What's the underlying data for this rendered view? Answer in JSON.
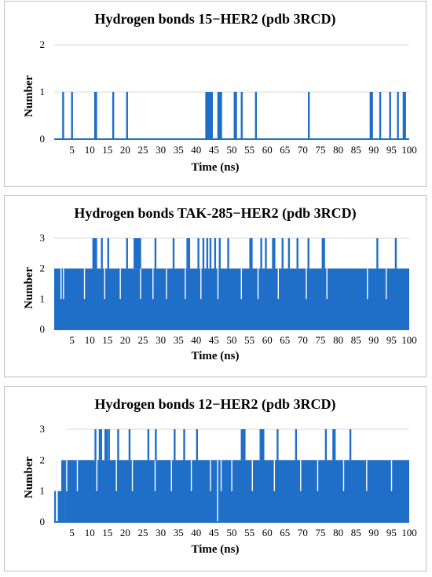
{
  "chart_data": [
    {
      "type": "bar",
      "title": "Hydrogen bonds 15−HER2 (pdb 3RCD)",
      "xlabel": "Time (ns)",
      "ylabel": "Number",
      "xlim": [
        0,
        100
      ],
      "ylim": [
        0,
        2
      ],
      "x_ticks": [
        5,
        10,
        15,
        20,
        25,
        30,
        35,
        40,
        45,
        50,
        55,
        60,
        65,
        70,
        75,
        80,
        85,
        90,
        95,
        100
      ],
      "y_ticks": [
        0,
        1,
        2
      ],
      "grid": true,
      "color": "#1f6fc8",
      "baseline": 0,
      "events": [
        {
          "t": 2.5,
          "v": 1
        },
        {
          "t": 5.0,
          "v": 1
        },
        {
          "t": 11.5,
          "v": 1
        },
        {
          "t": 11.8,
          "v": 1
        },
        {
          "t": 16.6,
          "v": 1
        },
        {
          "t": 20.5,
          "v": 1
        },
        {
          "t": 42.8,
          "v": 1
        },
        {
          "t": 43.2,
          "v": 1
        },
        {
          "t": 43.6,
          "v": 1
        },
        {
          "t": 44.0,
          "v": 1
        },
        {
          "t": 44.4,
          "v": 1
        },
        {
          "t": 46.2,
          "v": 1
        },
        {
          "t": 46.6,
          "v": 1
        },
        {
          "t": 47.0,
          "v": 1
        },
        {
          "t": 50.8,
          "v": 1
        },
        {
          "t": 51.2,
          "v": 1
        },
        {
          "t": 52.8,
          "v": 1
        },
        {
          "t": 56.8,
          "v": 1
        },
        {
          "t": 71.7,
          "v": 1
        },
        {
          "t": 89.1,
          "v": 1
        },
        {
          "t": 89.5,
          "v": 1
        },
        {
          "t": 91.8,
          "v": 1
        },
        {
          "t": 94.6,
          "v": 1
        },
        {
          "t": 96.8,
          "v": 1
        },
        {
          "t": 98.4,
          "v": 1
        },
        {
          "t": 98.8,
          "v": 1
        }
      ]
    },
    {
      "type": "bar",
      "title": "Hydrogen bonds TAK-285−HER2 (pdb 3RCD)",
      "xlabel": "Time (ns)",
      "ylabel": "Number",
      "xlim": [
        0,
        100
      ],
      "ylim": [
        0,
        3
      ],
      "x_ticks": [
        5,
        10,
        15,
        20,
        25,
        30,
        35,
        40,
        45,
        50,
        55,
        60,
        65,
        70,
        75,
        80,
        85,
        90,
        95,
        100
      ],
      "y_ticks": [
        0,
        1,
        2,
        3
      ],
      "grid": true,
      "color": "#1f6fc8",
      "baseline": 2,
      "low_events": [
        {
          "t": 1.9,
          "v": 1
        },
        {
          "t": 2.6,
          "v": 1
        },
        {
          "t": 8.5,
          "v": 1
        },
        {
          "t": 14.2,
          "v": 1
        },
        {
          "t": 18.6,
          "v": 1
        },
        {
          "t": 24.3,
          "v": 1
        },
        {
          "t": 27.8,
          "v": 1
        },
        {
          "t": 31.6,
          "v": 1
        },
        {
          "t": 36.9,
          "v": 1
        },
        {
          "t": 41.3,
          "v": 1
        },
        {
          "t": 46.1,
          "v": 1
        },
        {
          "t": 52.7,
          "v": 1
        },
        {
          "t": 57.4,
          "v": 1
        },
        {
          "t": 63.1,
          "v": 1
        },
        {
          "t": 71.0,
          "v": 1
        },
        {
          "t": 76.8,
          "v": 1
        },
        {
          "t": 88.2,
          "v": 1
        },
        {
          "t": 93.5,
          "v": 1
        }
      ],
      "events": [
        {
          "t": 11.0,
          "v": 3
        },
        {
          "t": 11.4,
          "v": 3
        },
        {
          "t": 11.8,
          "v": 3
        },
        {
          "t": 13.4,
          "v": 3
        },
        {
          "t": 15.2,
          "v": 3
        },
        {
          "t": 20.5,
          "v": 3
        },
        {
          "t": 22.6,
          "v": 3
        },
        {
          "t": 23.0,
          "v": 3
        },
        {
          "t": 23.4,
          "v": 3
        },
        {
          "t": 23.8,
          "v": 3
        },
        {
          "t": 24.2,
          "v": 3
        },
        {
          "t": 28.5,
          "v": 3
        },
        {
          "t": 33.6,
          "v": 3
        },
        {
          "t": 37.5,
          "v": 3
        },
        {
          "t": 38.0,
          "v": 3
        },
        {
          "t": 40.6,
          "v": 3
        },
        {
          "t": 42.0,
          "v": 3
        },
        {
          "t": 43.1,
          "v": 3
        },
        {
          "t": 44.0,
          "v": 3
        },
        {
          "t": 45.3,
          "v": 3
        },
        {
          "t": 46.6,
          "v": 3
        },
        {
          "t": 49.0,
          "v": 3
        },
        {
          "t": 55.2,
          "v": 3
        },
        {
          "t": 55.6,
          "v": 3
        },
        {
          "t": 58.3,
          "v": 3
        },
        {
          "t": 59.6,
          "v": 3
        },
        {
          "t": 61.6,
          "v": 3
        },
        {
          "t": 62.0,
          "v": 3
        },
        {
          "t": 64.3,
          "v": 3
        },
        {
          "t": 66.1,
          "v": 3
        },
        {
          "t": 68.5,
          "v": 3
        },
        {
          "t": 71.6,
          "v": 3
        },
        {
          "t": 75.6,
          "v": 3
        },
        {
          "t": 76.0,
          "v": 3
        },
        {
          "t": 91.0,
          "v": 3
        },
        {
          "t": 96.2,
          "v": 3
        }
      ]
    },
    {
      "type": "bar",
      "title": "Hydrogen bonds 12−HER2 (pdb 3RCD)",
      "xlabel": "Time (ns)",
      "ylabel": "Number",
      "xlim": [
        0,
        100
      ],
      "ylim": [
        0,
        3
      ],
      "x_ticks": [
        5,
        10,
        15,
        20,
        25,
        30,
        35,
        40,
        45,
        50,
        55,
        60,
        65,
        70,
        75,
        80,
        85,
        90,
        95,
        100
      ],
      "y_ticks": [
        0,
        1,
        2,
        3
      ],
      "grid": true,
      "color": "#1f6fc8",
      "baseline": 2,
      "segments": [
        {
          "start": 0,
          "end": 0.5,
          "v": 1
        },
        {
          "start": 0.5,
          "end": 1.0,
          "v": 0
        },
        {
          "start": 1.0,
          "end": 2.0,
          "v": 1
        },
        {
          "start": 2.0,
          "end": 3.3,
          "v": 2
        }
      ],
      "low_events": [
        {
          "t": 3.5,
          "v": 1
        },
        {
          "t": 6.5,
          "v": 1
        },
        {
          "t": 12.0,
          "v": 1
        },
        {
          "t": 17.5,
          "v": 1
        },
        {
          "t": 22.0,
          "v": 1
        },
        {
          "t": 28.4,
          "v": 1
        },
        {
          "t": 33.0,
          "v": 1
        },
        {
          "t": 38.6,
          "v": 1
        },
        {
          "t": 44.0,
          "v": 1
        },
        {
          "t": 46.0,
          "v": 0
        },
        {
          "t": 47.0,
          "v": 1
        },
        {
          "t": 50.0,
          "v": 1
        },
        {
          "t": 55.8,
          "v": 1
        },
        {
          "t": 62.0,
          "v": 1
        },
        {
          "t": 69.4,
          "v": 1
        },
        {
          "t": 74.2,
          "v": 1
        },
        {
          "t": 81.5,
          "v": 1
        },
        {
          "t": 88.0,
          "v": 1
        },
        {
          "t": 95.0,
          "v": 1
        }
      ],
      "events": [
        {
          "t": 11.6,
          "v": 3
        },
        {
          "t": 12.8,
          "v": 3
        },
        {
          "t": 13.2,
          "v": 3
        },
        {
          "t": 14.4,
          "v": 3
        },
        {
          "t": 14.8,
          "v": 3
        },
        {
          "t": 15.4,
          "v": 3
        },
        {
          "t": 18.0,
          "v": 3
        },
        {
          "t": 21.2,
          "v": 3
        },
        {
          "t": 26.5,
          "v": 3
        },
        {
          "t": 28.6,
          "v": 3
        },
        {
          "t": 33.9,
          "v": 3
        },
        {
          "t": 36.6,
          "v": 3
        },
        {
          "t": 40.2,
          "v": 3
        },
        {
          "t": 52.8,
          "v": 3
        },
        {
          "t": 53.2,
          "v": 3
        },
        {
          "t": 53.6,
          "v": 3
        },
        {
          "t": 58.1,
          "v": 3
        },
        {
          "t": 58.5,
          "v": 3
        },
        {
          "t": 58.9,
          "v": 3
        },
        {
          "t": 62.9,
          "v": 3
        },
        {
          "t": 68.1,
          "v": 3
        },
        {
          "t": 76.5,
          "v": 3
        },
        {
          "t": 78.6,
          "v": 3
        },
        {
          "t": 79.0,
          "v": 3
        },
        {
          "t": 83.4,
          "v": 3
        }
      ]
    }
  ]
}
